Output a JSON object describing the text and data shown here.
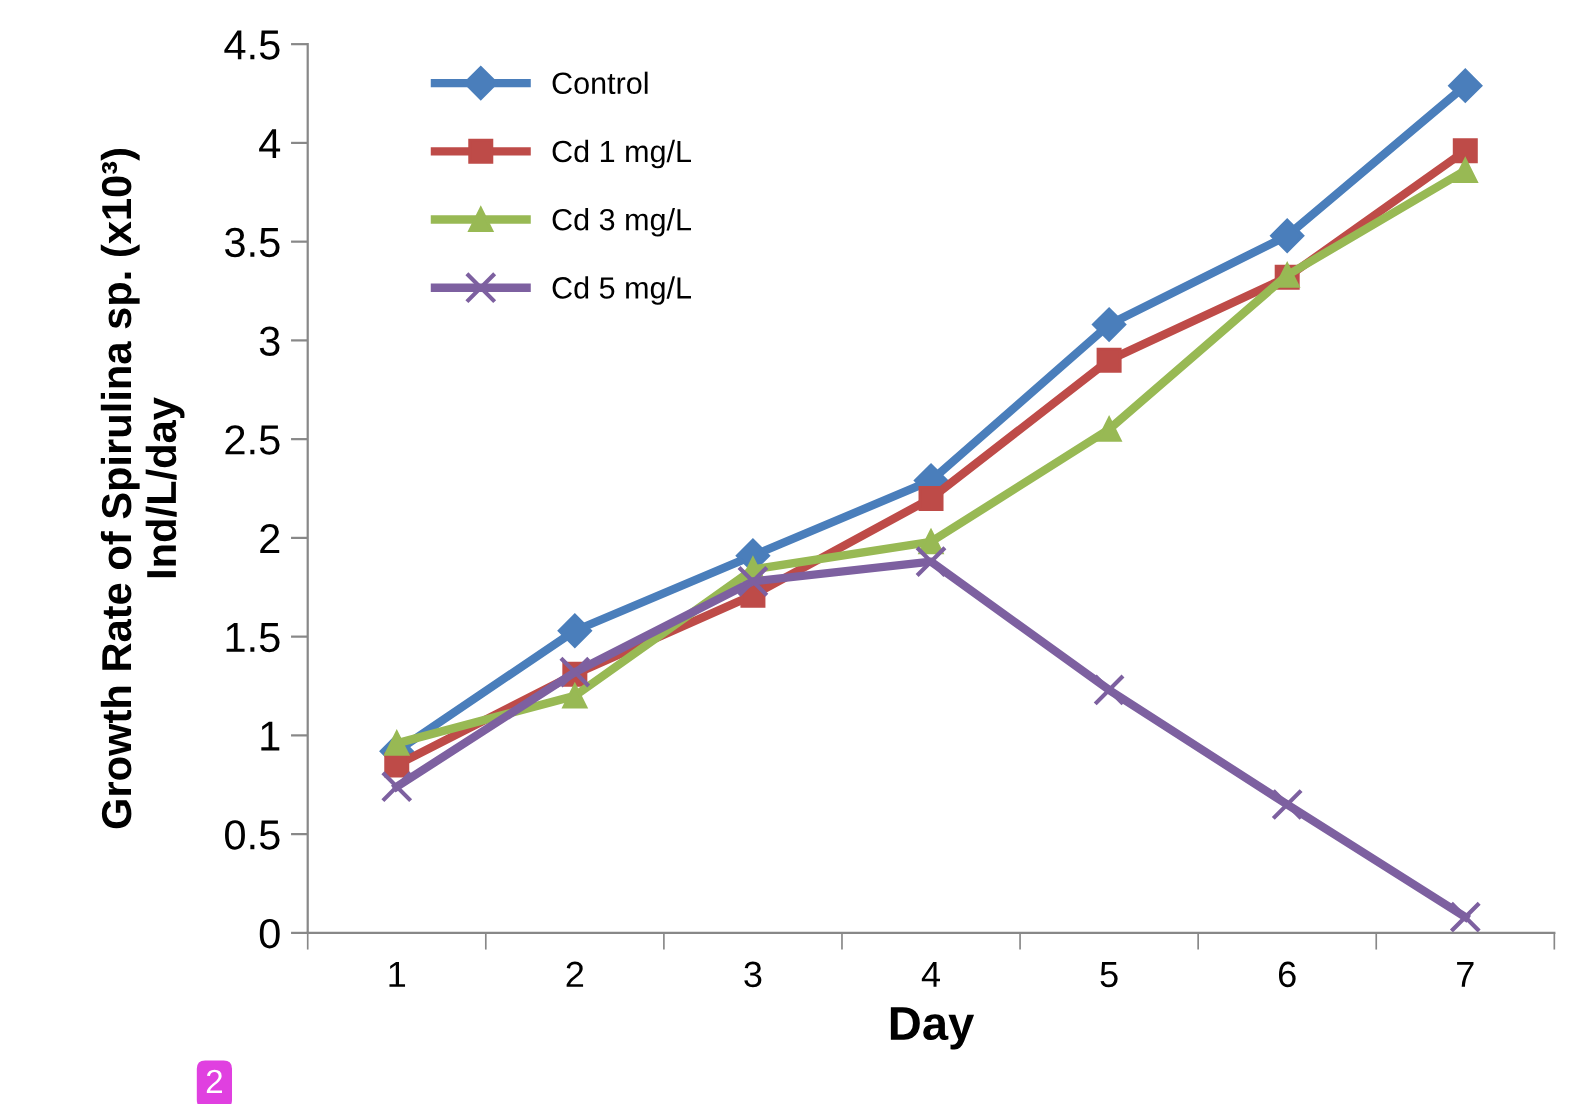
{
  "chart_data": {
    "type": "line",
    "xlabel": "Day",
    "ylabel": "Growth Rate of Spirulina sp. (x10³)\nInd/L/day",
    "categories": [
      "1",
      "2",
      "3",
      "4",
      "5",
      "6",
      "7"
    ],
    "series": [
      {
        "name": "Control",
        "color": "#4a7ebb",
        "marker": "diamond",
        "values": [
          0.92,
          1.53,
          1.91,
          2.29,
          3.08,
          3.53,
          4.29
        ]
      },
      {
        "name": "Cd 1 mg/L",
        "color": "#be4b48",
        "marker": "square",
        "values": [
          0.85,
          1.31,
          1.71,
          2.2,
          2.9,
          3.32,
          3.96
        ]
      },
      {
        "name": "Cd 3 mg/L",
        "color": "#98b954",
        "marker": "triangle",
        "values": [
          0.96,
          1.2,
          1.84,
          1.98,
          2.55,
          3.33,
          3.86
        ]
      },
      {
        "name": "Cd 5 mg/L",
        "color": "#7d60a0",
        "marker": "cross",
        "values": [
          0.74,
          1.32,
          1.78,
          1.88,
          1.23,
          0.65,
          0.08
        ]
      }
    ],
    "ylim": [
      0,
      4.5
    ],
    "yticks": [
      0,
      0.5,
      1,
      1.5,
      2,
      2.5,
      3,
      3.5,
      4,
      4.5
    ],
    "grid": false,
    "legend": "top left",
    "line_style": "solid",
    "annotations": [
      "2"
    ]
  }
}
